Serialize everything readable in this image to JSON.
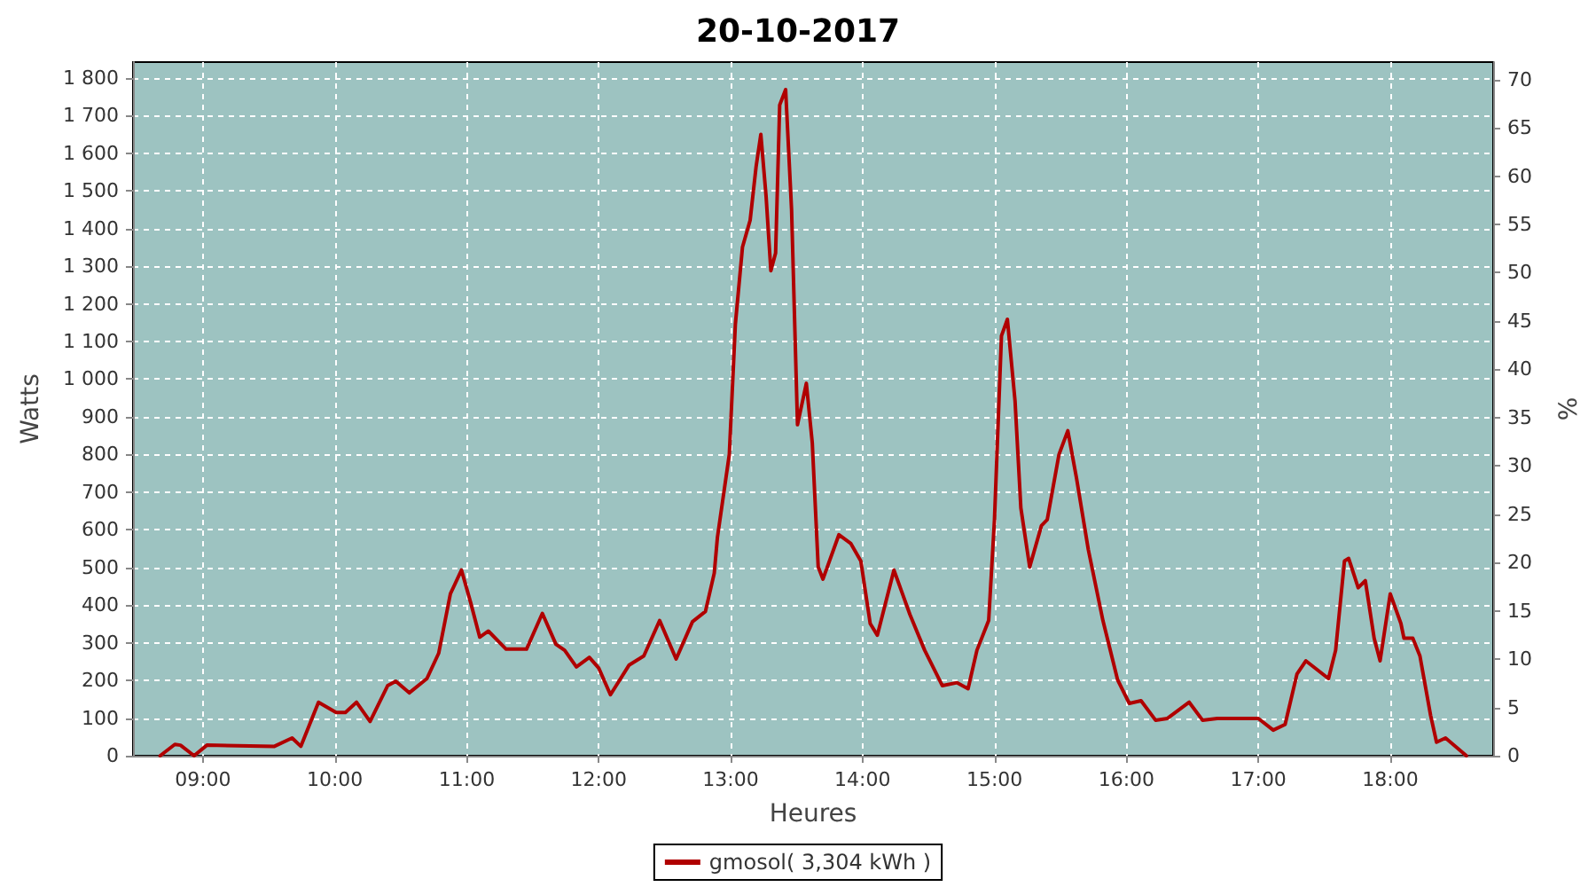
{
  "chart_data": {
    "type": "line",
    "title": "20-10-2017",
    "xlabel": "Heures",
    "ylabel": "Watts",
    "y2label": "%",
    "series": [
      {
        "name": "gmosol( 3,304 kWh )",
        "color": "#b00000",
        "x": [
          8.676,
          8.787,
          8.83,
          8.933,
          9.03,
          9.542,
          9.676,
          9.742,
          9.876,
          10.01,
          10.08,
          10.164,
          10.267,
          10.4,
          10.462,
          10.564,
          10.698,
          10.787,
          10.876,
          10.96,
          11.03,
          11.098,
          11.164,
          11.298,
          11.453,
          11.573,
          11.676,
          11.742,
          11.831,
          11.929,
          12.0,
          12.089,
          12.231,
          12.342,
          12.462,
          12.587,
          12.711,
          12.809,
          12.876,
          12.9,
          12.99,
          13.036,
          13.09,
          13.148,
          13.193,
          13.229,
          13.269,
          13.305,
          13.341,
          13.372,
          13.417,
          13.462,
          13.507,
          13.574,
          13.619,
          13.664,
          13.7,
          13.821,
          13.91,
          13.987,
          14.058,
          14.112,
          14.238,
          14.359,
          14.471,
          14.605,
          14.717,
          14.8,
          14.867,
          14.956,
          15.0,
          15.053,
          15.098,
          15.156,
          15.2,
          15.267,
          15.356,
          15.4,
          15.489,
          15.556,
          15.622,
          15.711,
          15.822,
          15.933,
          16.022,
          16.111,
          16.222,
          16.311,
          16.476,
          16.578,
          16.689,
          17.0,
          17.113,
          17.203,
          17.293,
          17.36,
          17.532,
          17.586,
          17.653,
          17.685,
          17.757,
          17.811,
          17.878,
          17.923,
          18.0,
          18.081,
          18.104,
          18.171,
          18.225,
          18.306,
          18.351,
          18.419,
          18.577
        ],
        "values": [
          0,
          30,
          28,
          0,
          28,
          25,
          47,
          25,
          142,
          115,
          115,
          142,
          91,
          186,
          198,
          167,
          205,
          272,
          430,
          493,
          406,
          315,
          331,
          283,
          283,
          378,
          296,
          280,
          236,
          261,
          233,
          162,
          241,
          265,
          359,
          257,
          356,
          383,
          485,
          580,
          800,
          1146,
          1351,
          1422,
          1564,
          1650,
          1485,
          1288,
          1335,
          1728,
          1769,
          1450,
          879,
          989,
          831,
          501,
          469,
          587,
          564,
          517,
          351,
          320,
          493,
          375,
          280,
          186,
          194,
          178,
          280,
          359,
          627,
          1115,
          1159,
          942,
          658,
          501,
          611,
          627,
          800,
          863,
          737,
          548,
          359,
          202,
          139,
          146,
          94,
          99,
          142,
          94,
          99,
          99,
          68,
          83,
          217,
          252,
          205,
          280,
          517,
          524,
          446,
          465,
          312,
          252,
          430,
          351,
          312,
          312,
          265,
          107,
          36,
          47,
          0
        ]
      }
    ],
    "xlim": [
      8.47,
      18.78
    ],
    "xticks": [
      {
        "value": 9,
        "label": "09:00"
      },
      {
        "value": 10,
        "label": "10:00"
      },
      {
        "value": 11,
        "label": "11:00"
      },
      {
        "value": 12,
        "label": "12:00"
      },
      {
        "value": 13,
        "label": "13:00"
      },
      {
        "value": 14,
        "label": "14:00"
      },
      {
        "value": 15,
        "label": "15:00"
      },
      {
        "value": 16,
        "label": "16:00"
      },
      {
        "value": 17,
        "label": "17:00"
      },
      {
        "value": 18,
        "label": "18:00"
      }
    ],
    "ylim": [
      0,
      1842
    ],
    "yticks": [
      0,
      100,
      200,
      300,
      400,
      500,
      600,
      700,
      800,
      900,
      {
        "value": 1000,
        "label": "1 000"
      },
      {
        "value": 1100,
        "label": "1 100"
      },
      {
        "value": 1200,
        "label": "1 200"
      },
      {
        "value": 1300,
        "label": "1 300"
      },
      {
        "value": 1400,
        "label": "1 400"
      },
      {
        "value": 1500,
        "label": "1 500"
      },
      {
        "value": 1600,
        "label": "1 600"
      },
      {
        "value": 1700,
        "label": "1 700"
      },
      {
        "value": 1800,
        "label": "1 800"
      }
    ],
    "y2lim": [
      0,
      71.8
    ],
    "y2ticks": [
      0,
      5,
      10,
      15,
      20,
      25,
      30,
      35,
      40,
      45,
      50,
      55,
      60,
      65,
      70
    ],
    "grid": true,
    "legend": "bottom",
    "marker": "none",
    "line_style": "solid"
  }
}
